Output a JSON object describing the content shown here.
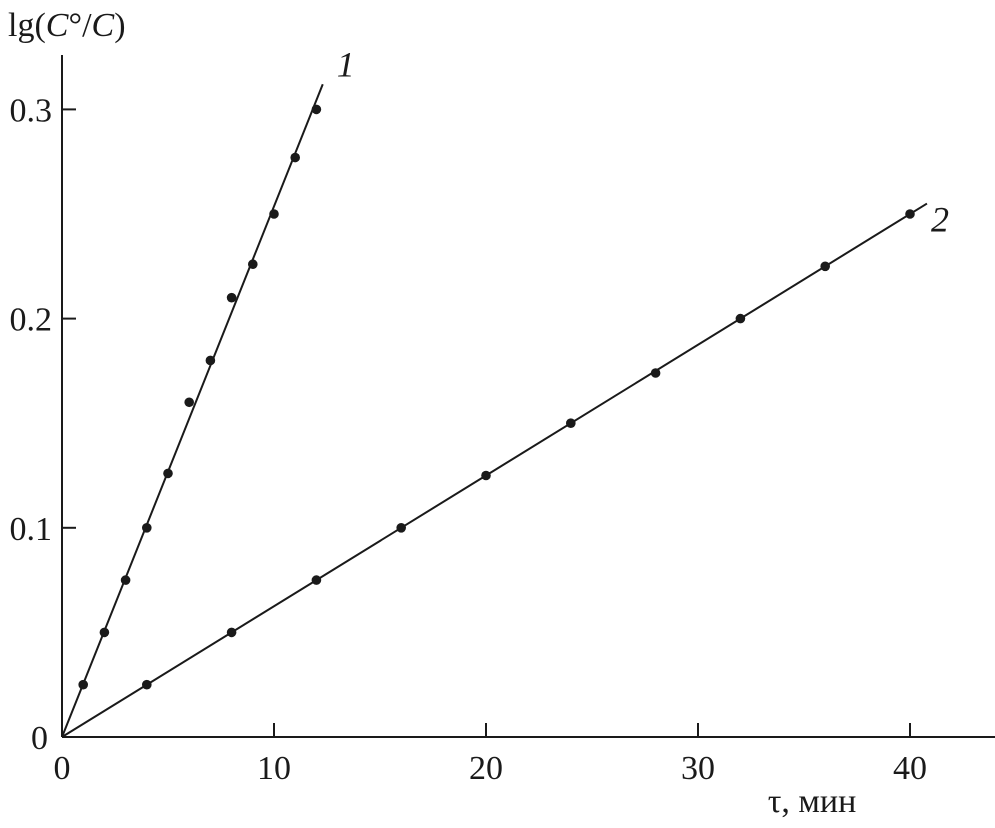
{
  "chart_data": {
    "type": "scatter",
    "xlabel": "τ, мин",
    "ylabel_parts": [
      "lg(",
      "C",
      "°/",
      "C",
      ")"
    ],
    "xlim": [
      0,
      44
    ],
    "ylim": [
      0,
      0.33
    ],
    "x_ticks": [
      0,
      10,
      20,
      30,
      40
    ],
    "x_tick_labels": [
      "0",
      "10",
      "20",
      "30",
      "40"
    ],
    "y_ticks": [
      0.1,
      0.2,
      0.3
    ],
    "y_tick_labels": [
      "0.1",
      "0.2",
      "0.3"
    ],
    "origin_label": "0",
    "grid": false,
    "series": [
      {
        "name": "1",
        "x": [
          1,
          2,
          3,
          4,
          5,
          6,
          7,
          8,
          9,
          10,
          11,
          12
        ],
        "y": [
          0.025,
          0.05,
          0.075,
          0.1,
          0.126,
          0.16,
          0.18,
          0.21,
          0.226,
          0.25,
          0.277,
          0.3
        ],
        "fit": {
          "x": [
            0,
            12.3
          ],
          "y": [
            0,
            0.312
          ]
        }
      },
      {
        "name": "2",
        "x": [
          4,
          8,
          12,
          16,
          20,
          24,
          28,
          32,
          36,
          40
        ],
        "y": [
          0.025,
          0.05,
          0.075,
          0.1,
          0.125,
          0.15,
          0.174,
          0.2,
          0.225,
          0.25
        ],
        "fit": {
          "x": [
            0,
            40.8
          ],
          "y": [
            0,
            0.255
          ]
        }
      }
    ]
  }
}
